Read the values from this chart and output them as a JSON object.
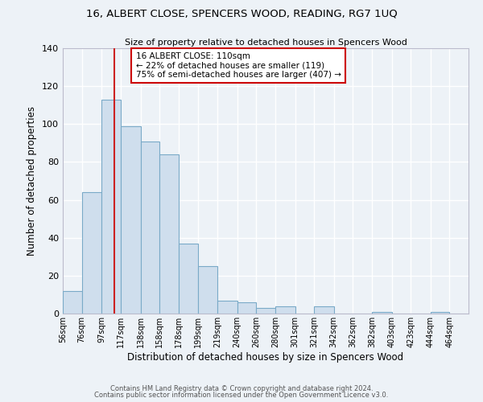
{
  "title": "16, ALBERT CLOSE, SPENCERS WOOD, READING, RG7 1UQ",
  "subtitle": "Size of property relative to detached houses in Spencers Wood",
  "xlabel": "Distribution of detached houses by size in Spencers Wood",
  "ylabel": "Number of detached properties",
  "bin_labels": [
    "56sqm",
    "76sqm",
    "97sqm",
    "117sqm",
    "138sqm",
    "158sqm",
    "178sqm",
    "199sqm",
    "219sqm",
    "240sqm",
    "260sqm",
    "280sqm",
    "301sqm",
    "321sqm",
    "342sqm",
    "362sqm",
    "382sqm",
    "403sqm",
    "423sqm",
    "444sqm",
    "464sqm"
  ],
  "bin_edges": [
    56,
    76,
    97,
    117,
    138,
    158,
    178,
    199,
    219,
    240,
    260,
    280,
    301,
    321,
    342,
    362,
    382,
    403,
    423,
    444,
    464,
    484
  ],
  "bar_values": [
    12,
    64,
    113,
    99,
    91,
    84,
    37,
    25,
    7,
    6,
    3,
    4,
    0,
    4,
    0,
    0,
    1,
    0,
    0,
    1,
    0
  ],
  "bar_color": "#cfdeed",
  "bar_edge_color": "#7aaac8",
  "background_color": "#edf2f7",
  "grid_color": "#ffffff",
  "property_line_x": 110,
  "annotation_title": "16 ALBERT CLOSE: 110sqm",
  "annotation_line1": "← 22% of detached houses are smaller (119)",
  "annotation_line2": "75% of semi-detached houses are larger (407) →",
  "annotation_box_color": "#ffffff",
  "annotation_box_edge": "#cc0000",
  "red_line_color": "#cc2222",
  "ylim": [
    0,
    140
  ],
  "yticks": [
    0,
    20,
    40,
    60,
    80,
    100,
    120,
    140
  ],
  "footer1": "Contains HM Land Registry data © Crown copyright and database right 2024.",
  "footer2": "Contains public sector information licensed under the Open Government Licence v3.0."
}
